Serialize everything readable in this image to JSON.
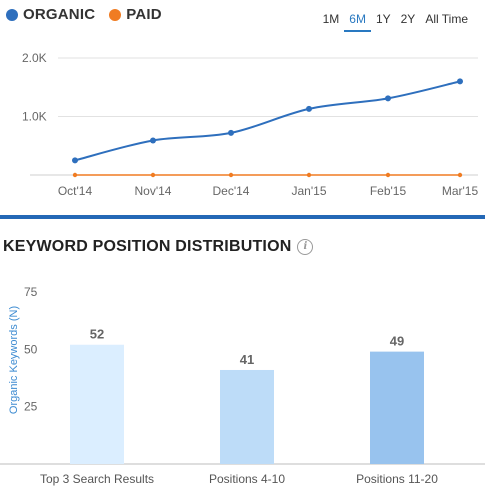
{
  "legend": {
    "organic_label": "ORGANIC",
    "paid_label": "PAID"
  },
  "ranges": [
    "1M",
    "6M",
    "1Y",
    "2Y",
    "All Time"
  ],
  "active_range": "6M",
  "section_title": "KEYWORD POSITION DISTRIBUTION",
  "info_icon_glyph": "i",
  "colors": {
    "organic": "#2e6fbd",
    "paid": "#f07c22",
    "bar1": "#dbeeff",
    "bar2": "#bddcf8",
    "bar3": "#98c3ee",
    "axis_label": "#3d8bd1",
    "divider": "#2468b6"
  },
  "chart_data": [
    {
      "type": "line",
      "x": [
        "Oct'14",
        "Nov'14",
        "Dec'14",
        "Jan'15",
        "Feb'15",
        "Mar'15"
      ],
      "series": [
        {
          "name": "ORGANIC",
          "values": [
            250,
            590,
            720,
            1130,
            1310,
            1600
          ]
        },
        {
          "name": "PAID",
          "values": [
            0,
            0,
            0,
            0,
            0,
            0
          ]
        }
      ],
      "yticks": [
        "1.0K",
        "2.0K"
      ],
      "ytick_values": [
        1000,
        2000
      ],
      "ylim": [
        0,
        2000
      ],
      "grid": true
    },
    {
      "type": "bar",
      "categories": [
        "Top 3 Search Results",
        "Positions 4-10",
        "Positions 11-20"
      ],
      "values": [
        52,
        41,
        49
      ],
      "ylabel": "Organic Keywords (N)",
      "yticks": [
        "25",
        "50",
        "75"
      ],
      "ytick_values": [
        25,
        50,
        75
      ],
      "ylim": [
        0,
        75
      ]
    }
  ]
}
